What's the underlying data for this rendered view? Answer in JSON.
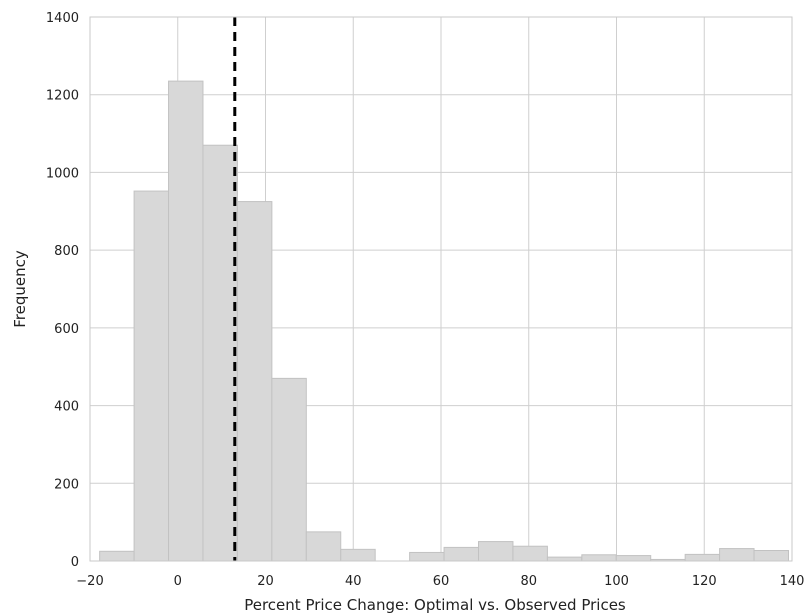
{
  "chart_data": {
    "type": "bar",
    "subtype": "histogram",
    "title": "",
    "xlabel": "Percent Price Change: Optimal vs. Observed Prices",
    "ylabel": "Frequency",
    "xlim": [
      -20,
      140
    ],
    "ylim": [
      0,
      1400
    ],
    "xticks": [
      -20,
      0,
      20,
      40,
      60,
      80,
      100,
      120,
      140
    ],
    "xtick_labels": [
      "−20",
      "0",
      "20",
      "40",
      "60",
      "80",
      "100",
      "120",
      "140"
    ],
    "yticks": [
      0,
      200,
      400,
      600,
      800,
      1000,
      1200,
      1400
    ],
    "ytick_labels": [
      "0",
      "200",
      "400",
      "600",
      "800",
      "1000",
      "1200",
      "1400"
    ],
    "grid": true,
    "legend": "none",
    "bin_start": -17.8,
    "bin_width": 7.85,
    "values": [
      25,
      952,
      1235,
      1070,
      925,
      470,
      75,
      30,
      0,
      22,
      35,
      50,
      38,
      10,
      16,
      14,
      4,
      17,
      32,
      27
    ],
    "bar_color": "#d8d8d8",
    "bar_edge_color": "#c2c2c2",
    "reference_line": {
      "x": 13,
      "style": "dashed",
      "color": "#000000"
    }
  }
}
